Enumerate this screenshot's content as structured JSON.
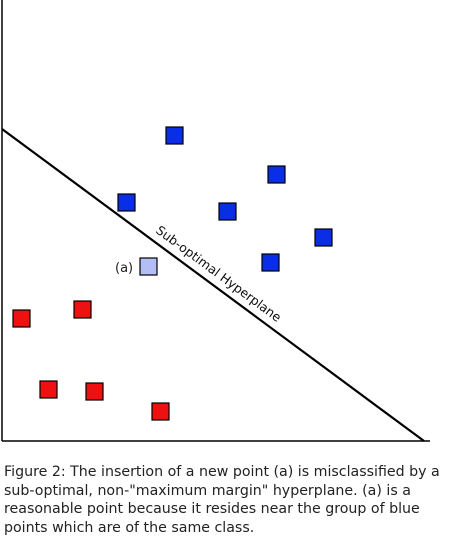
{
  "figure": {
    "hyperplane_label": "Sub-optimal Hyperplane",
    "new_point_label": "(a)",
    "colors": {
      "blue": "#0a2ee6",
      "red": "#ee1111",
      "new_point": "#b3bef5",
      "line": "#000000"
    }
  },
  "caption": "Figure 2: The insertion of a new point (a) is misclassified by a sub-optimal, non-\"maximum margin\" hyperplane. (a) is a reasonable point because it resides near the group of blue points which are of the same class."
}
